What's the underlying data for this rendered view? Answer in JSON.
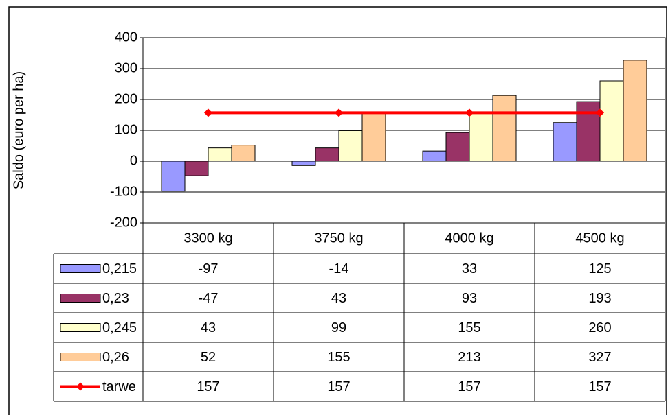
{
  "chart_data": {
    "type": "bar",
    "y_label": "Saldo (euro per ha)",
    "categories": [
      "3300 kg",
      "3750 kg",
      "4000 kg",
      "4500 kg"
    ],
    "series": [
      {
        "name": "0,215",
        "color": "#9999ff",
        "values": [
          -97,
          -14,
          33,
          125
        ]
      },
      {
        "name": "0,23",
        "color": "#993366",
        "values": [
          -47,
          43,
          93,
          193
        ]
      },
      {
        "name": "0,245",
        "color": "#ffffcc",
        "values": [
          43,
          99,
          155,
          260
        ]
      },
      {
        "name": "0,26",
        "color": "#ffcc99",
        "values": [
          52,
          155,
          213,
          327
        ]
      },
      {
        "name": "tarwe",
        "color": "#ff0000",
        "type": "line",
        "values": [
          157,
          157,
          157,
          157
        ]
      }
    ],
    "ylim": [
      -200,
      400
    ],
    "yticks": [
      -200,
      -100,
      0,
      100,
      200,
      300,
      400
    ],
    "grid": true
  }
}
